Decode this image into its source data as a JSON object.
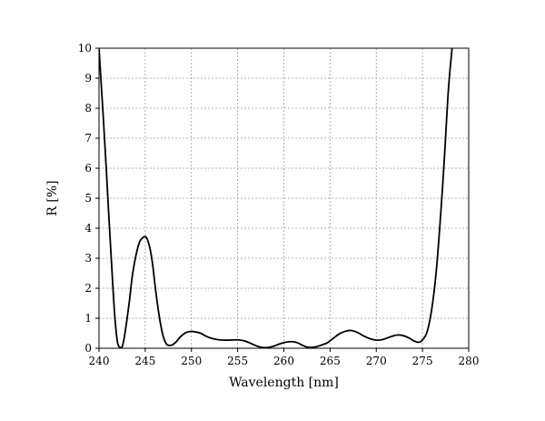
{
  "chart_data": {
    "type": "line",
    "title": "",
    "xlabel": "Wavelength [nm]",
    "ylabel": "R [%]",
    "xlim": [
      240,
      280
    ],
    "ylim": [
      0,
      10
    ],
    "xticks": [
      240,
      245,
      250,
      255,
      260,
      265,
      270,
      275,
      280
    ],
    "yticks": [
      0,
      1,
      2,
      3,
      4,
      5,
      6,
      7,
      8,
      9,
      10
    ],
    "xtick_labels": [
      "240",
      "245",
      "250",
      "255",
      "260",
      "265",
      "270",
      "275",
      "280"
    ],
    "ytick_labels": [
      "0",
      "1",
      "2",
      "3",
      "4",
      "5",
      "6",
      "7",
      "8",
      "9",
      "10"
    ],
    "grid": true,
    "line_color": "#000000",
    "series": [
      {
        "x": [
          240.0,
          240.2,
          240.5,
          240.8,
          241.1,
          241.4,
          241.7,
          242.0,
          242.3,
          242.5,
          242.7,
          243.0,
          243.3,
          243.6,
          244.0,
          244.4,
          244.8,
          245.0,
          245.2,
          245.5,
          245.8,
          246.1,
          246.5,
          246.9,
          247.3,
          247.8,
          248.3,
          248.8,
          249.4,
          250.0,
          250.5,
          251.0,
          251.6,
          252.2,
          253.0,
          254.0,
          255.0,
          255.8,
          256.5,
          257.2,
          258.0,
          258.8,
          259.5,
          260.2,
          260.9,
          261.5,
          262.0,
          262.5,
          263.0,
          263.5,
          264.0,
          264.7,
          265.3,
          266.0,
          266.7,
          267.3,
          268.0,
          268.7,
          269.5,
          270.2,
          270.8,
          271.5,
          272.2,
          272.8,
          273.5,
          274.1,
          274.6,
          275.0,
          275.5,
          276.0,
          276.5,
          277.0,
          277.4,
          277.8,
          278.2
        ],
        "y": [
          10.0,
          9.0,
          7.5,
          5.9,
          4.2,
          2.6,
          1.1,
          0.2,
          0.02,
          0.05,
          0.3,
          0.9,
          1.6,
          2.4,
          3.1,
          3.55,
          3.7,
          3.72,
          3.65,
          3.35,
          2.8,
          2.0,
          1.1,
          0.45,
          0.14,
          0.1,
          0.2,
          0.38,
          0.52,
          0.56,
          0.54,
          0.5,
          0.4,
          0.33,
          0.28,
          0.27,
          0.28,
          0.24,
          0.15,
          0.06,
          0.02,
          0.06,
          0.14,
          0.2,
          0.22,
          0.18,
          0.1,
          0.04,
          0.03,
          0.05,
          0.1,
          0.18,
          0.32,
          0.48,
          0.57,
          0.59,
          0.52,
          0.4,
          0.3,
          0.27,
          0.3,
          0.38,
          0.44,
          0.43,
          0.35,
          0.24,
          0.2,
          0.28,
          0.55,
          1.3,
          2.6,
          4.6,
          6.5,
          8.6,
          10.0
        ]
      }
    ]
  }
}
